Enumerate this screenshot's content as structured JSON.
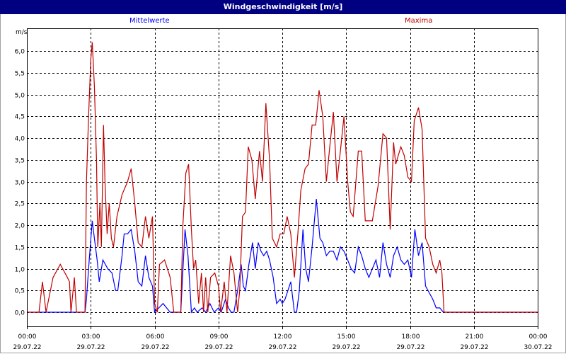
{
  "window": {
    "title": "Windgeschwindigkeit [m/s]"
  },
  "chart_data": {
    "type": "line",
    "title": "Windgeschwindigkeit [m/s]",
    "ylabel": "m/s",
    "xlabel": "",
    "ylim": [
      0,
      6.0
    ],
    "yticks": [
      "0,0",
      "0,5",
      "1,0",
      "1,5",
      "2,0",
      "2,5",
      "3,0",
      "3,5",
      "4,0",
      "4,5",
      "5,0",
      "5,5",
      "6,0"
    ],
    "xlim_hours": [
      0,
      24
    ],
    "xticks": [
      {
        "time": "00:00",
        "date": "29.07.22"
      },
      {
        "time": "03:00",
        "date": "29.07.22"
      },
      {
        "time": "06:00",
        "date": "29.07.22"
      },
      {
        "time": "09:00",
        "date": "29.07.22"
      },
      {
        "time": "12:00",
        "date": "29.07.22"
      },
      {
        "time": "15:00",
        "date": "29.07.22"
      },
      {
        "time": "18:00",
        "date": "29.07.22"
      },
      {
        "time": "21:00",
        "date": "29.07.22"
      },
      {
        "time": "00:00",
        "date": "30.07.22"
      }
    ],
    "grid": true,
    "legend_placement": "top",
    "series": [
      {
        "name": "Mittelwerte",
        "color": "#0000ff",
        "points": [
          [
            0,
            0
          ],
          [
            2.73,
            0
          ],
          [
            2.8,
            0.3
          ],
          [
            2.93,
            1.2
          ],
          [
            3.07,
            2.1
          ],
          [
            3.17,
            1.7
          ],
          [
            3.3,
            1.2
          ],
          [
            3.4,
            0.7
          ],
          [
            3.57,
            1.2
          ],
          [
            3.8,
            1.0
          ],
          [
            4.0,
            0.9
          ],
          [
            4.17,
            0.5
          ],
          [
            4.27,
            0.5
          ],
          [
            4.47,
            1.3
          ],
          [
            4.57,
            1.8
          ],
          [
            4.73,
            1.8
          ],
          [
            4.9,
            1.9
          ],
          [
            5.07,
            1.4
          ],
          [
            5.23,
            0.7
          ],
          [
            5.4,
            0.6
          ],
          [
            5.57,
            1.3
          ],
          [
            5.73,
            0.8
          ],
          [
            5.9,
            0.6
          ],
          [
            6.0,
            0
          ],
          [
            6.4,
            0.2
          ],
          [
            6.73,
            0
          ],
          [
            7.23,
            0
          ],
          [
            7.43,
            1.9
          ],
          [
            7.57,
            1.3
          ],
          [
            7.67,
            0.5
          ],
          [
            7.73,
            0
          ],
          [
            7.87,
            0.1
          ],
          [
            8.0,
            0
          ],
          [
            8.23,
            0.1
          ],
          [
            8.4,
            0
          ],
          [
            8.6,
            0.2
          ],
          [
            8.8,
            0
          ],
          [
            9.0,
            0.1
          ],
          [
            9.13,
            0
          ],
          [
            9.33,
            0.3
          ],
          [
            9.47,
            0.1
          ],
          [
            9.6,
            0
          ],
          [
            9.73,
            0
          ],
          [
            9.9,
            0.5
          ],
          [
            10.07,
            1.1
          ],
          [
            10.17,
            0.6
          ],
          [
            10.27,
            0.5
          ],
          [
            10.43,
            1.1
          ],
          [
            10.6,
            1.6
          ],
          [
            10.73,
            1.0
          ],
          [
            10.87,
            1.6
          ],
          [
            11.0,
            1.4
          ],
          [
            11.13,
            1.3
          ],
          [
            11.27,
            1.4
          ],
          [
            11.4,
            1.2
          ],
          [
            11.57,
            0.8
          ],
          [
            11.73,
            0.2
          ],
          [
            11.9,
            0.3
          ],
          [
            12.0,
            0.2
          ],
          [
            12.13,
            0.3
          ],
          [
            12.4,
            0.7
          ],
          [
            12.57,
            0
          ],
          [
            12.67,
            0
          ],
          [
            12.8,
            0.5
          ],
          [
            12.97,
            1.9
          ],
          [
            13.1,
            1.0
          ],
          [
            13.23,
            0.7
          ],
          [
            13.4,
            1.5
          ],
          [
            13.6,
            2.6
          ],
          [
            13.77,
            1.7
          ],
          [
            13.9,
            1.6
          ],
          [
            14.07,
            1.3
          ],
          [
            14.23,
            1.4
          ],
          [
            14.4,
            1.4
          ],
          [
            14.57,
            1.2
          ],
          [
            14.73,
            1.5
          ],
          [
            14.9,
            1.4
          ],
          [
            15.07,
            1.2
          ],
          [
            15.23,
            1.0
          ],
          [
            15.4,
            0.9
          ],
          [
            15.57,
            1.5
          ],
          [
            15.73,
            1.3
          ],
          [
            15.9,
            1.0
          ],
          [
            16.07,
            0.8
          ],
          [
            16.23,
            1.0
          ],
          [
            16.4,
            1.2
          ],
          [
            16.57,
            0.8
          ],
          [
            16.73,
            1.6
          ],
          [
            16.9,
            1.1
          ],
          [
            17.07,
            0.8
          ],
          [
            17.23,
            1.3
          ],
          [
            17.4,
            1.5
          ],
          [
            17.57,
            1.2
          ],
          [
            17.73,
            1.1
          ],
          [
            17.9,
            1.2
          ],
          [
            18.07,
            0.8
          ],
          [
            18.23,
            1.9
          ],
          [
            18.4,
            1.3
          ],
          [
            18.57,
            1.6
          ],
          [
            18.73,
            0.6
          ],
          [
            19.07,
            0.3
          ],
          [
            19.23,
            0.1
          ],
          [
            19.4,
            0.1
          ],
          [
            19.57,
            0
          ],
          [
            24,
            0
          ]
        ]
      },
      {
        "name": "Maxima",
        "color": "#c00000",
        "points": [
          [
            0,
            0
          ],
          [
            0.57,
            0
          ],
          [
            0.73,
            0.7
          ],
          [
            0.9,
            0
          ],
          [
            1.23,
            0.8
          ],
          [
            1.57,
            1.1
          ],
          [
            1.9,
            0.8
          ],
          [
            2.0,
            0.7
          ],
          [
            2.07,
            0
          ],
          [
            2.23,
            0.8
          ],
          [
            2.33,
            0
          ],
          [
            2.73,
            0
          ],
          [
            2.8,
            3.0
          ],
          [
            2.9,
            4.5
          ],
          [
            3.0,
            5.8
          ],
          [
            3.07,
            6.2
          ],
          [
            3.17,
            5.2
          ],
          [
            3.27,
            3.5
          ],
          [
            3.33,
            1.5
          ],
          [
            3.43,
            2.5
          ],
          [
            3.5,
            1.5
          ],
          [
            3.6,
            4.3
          ],
          [
            3.67,
            3.0
          ],
          [
            3.77,
            1.8
          ],
          [
            3.87,
            2.5
          ],
          [
            3.97,
            1.7
          ],
          [
            4.07,
            1.5
          ],
          [
            4.23,
            2.2
          ],
          [
            4.47,
            2.7
          ],
          [
            4.73,
            3.0
          ],
          [
            4.9,
            3.3
          ],
          [
            5.07,
            2.5
          ],
          [
            5.23,
            1.6
          ],
          [
            5.4,
            1.5
          ],
          [
            5.57,
            2.2
          ],
          [
            5.73,
            1.7
          ],
          [
            5.9,
            2.2
          ],
          [
            6.0,
            0.2
          ],
          [
            6.13,
            0
          ],
          [
            6.23,
            1.1
          ],
          [
            6.47,
            1.2
          ],
          [
            6.73,
            0.8
          ],
          [
            6.9,
            0
          ],
          [
            7.23,
            0
          ],
          [
            7.33,
            2.0
          ],
          [
            7.47,
            3.2
          ],
          [
            7.6,
            3.4
          ],
          [
            7.73,
            1.9
          ],
          [
            7.83,
            1.0
          ],
          [
            7.93,
            1.2
          ],
          [
            8.07,
            0.2
          ],
          [
            8.2,
            0.9
          ],
          [
            8.3,
            0
          ],
          [
            8.4,
            0.8
          ],
          [
            8.5,
            0
          ],
          [
            8.63,
            0.8
          ],
          [
            8.83,
            0.9
          ],
          [
            9.0,
            0.6
          ],
          [
            9.1,
            0
          ],
          [
            9.27,
            0.7
          ],
          [
            9.4,
            0
          ],
          [
            9.57,
            1.3
          ],
          [
            9.73,
            0.9
          ],
          [
            9.9,
            0
          ],
          [
            10.0,
            0.5
          ],
          [
            10.13,
            2.2
          ],
          [
            10.27,
            2.3
          ],
          [
            10.4,
            3.8
          ],
          [
            10.57,
            3.5
          ],
          [
            10.73,
            2.6
          ],
          [
            10.93,
            3.7
          ],
          [
            11.07,
            3.0
          ],
          [
            11.23,
            4.8
          ],
          [
            11.4,
            3.5
          ],
          [
            11.53,
            1.7
          ],
          [
            11.73,
            1.5
          ],
          [
            11.9,
            1.8
          ],
          [
            12.07,
            1.8
          ],
          [
            12.23,
            2.2
          ],
          [
            12.4,
            1.8
          ],
          [
            12.57,
            0.8
          ],
          [
            12.73,
            1.8
          ],
          [
            12.87,
            2.8
          ],
          [
            13.07,
            3.3
          ],
          [
            13.23,
            3.4
          ],
          [
            13.4,
            4.3
          ],
          [
            13.57,
            4.3
          ],
          [
            13.73,
            5.1
          ],
          [
            13.9,
            4.5
          ],
          [
            14.07,
            3.0
          ],
          [
            14.23,
            3.8
          ],
          [
            14.4,
            4.6
          ],
          [
            14.57,
            3.0
          ],
          [
            14.73,
            3.7
          ],
          [
            14.9,
            4.5
          ],
          [
            15.07,
            3.0
          ],
          [
            15.2,
            2.3
          ],
          [
            15.33,
            2.2
          ],
          [
            15.57,
            3.7
          ],
          [
            15.73,
            3.7
          ],
          [
            15.9,
            2.1
          ],
          [
            16.23,
            2.1
          ],
          [
            16.5,
            2.9
          ],
          [
            16.73,
            4.1
          ],
          [
            16.9,
            4.0
          ],
          [
            17.07,
            1.9
          ],
          [
            17.23,
            3.9
          ],
          [
            17.33,
            3.4
          ],
          [
            17.57,
            3.8
          ],
          [
            17.73,
            3.6
          ],
          [
            17.9,
            3.1
          ],
          [
            18.07,
            3.0
          ],
          [
            18.2,
            4.4
          ],
          [
            18.4,
            4.7
          ],
          [
            18.57,
            4.2
          ],
          [
            18.73,
            1.7
          ],
          [
            18.9,
            1.5
          ],
          [
            19.07,
            1.1
          ],
          [
            19.23,
            0.9
          ],
          [
            19.4,
            1.2
          ],
          [
            19.5,
            0.9
          ],
          [
            19.6,
            0
          ],
          [
            24,
            0
          ]
        ]
      }
    ]
  }
}
